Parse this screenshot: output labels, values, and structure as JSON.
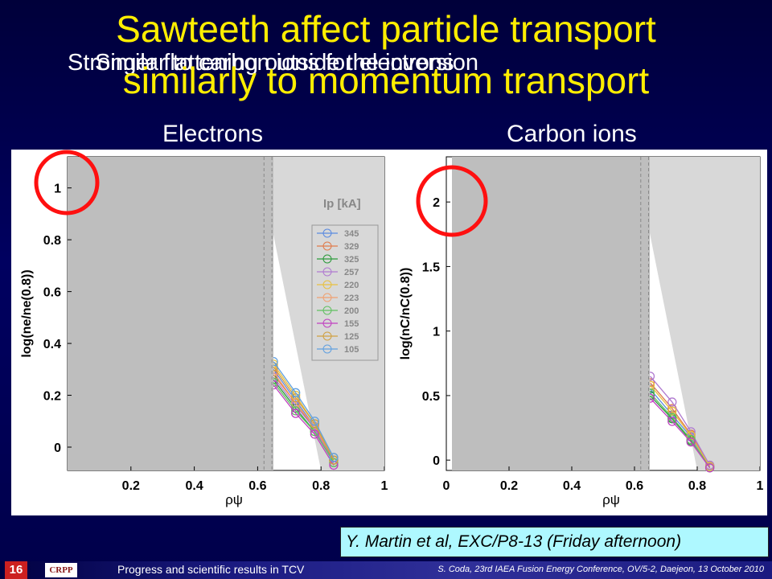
{
  "slide": {
    "title_line1": "Sawteeth affect particle transport",
    "title_line2": "similarly to momentum transport",
    "overlap_a": "Stronger flattening outside the inversion",
    "overlap_b": "Similar to carbon ions for electrons",
    "colors": {
      "title": "#ffee00",
      "background": "#000050",
      "circle": "#ff1010",
      "citation_bg": "#aef8ff"
    }
  },
  "panels": {
    "left_heading": "Electrons",
    "right_heading": "Carbon ions"
  },
  "chart_data": [
    {
      "type": "line",
      "title": "Electrons",
      "xlabel": "ρψ",
      "ylabel": "log(ne/ne(0.8))",
      "xlim": [
        0,
        1
      ],
      "ylim": [
        -0.09,
        1.12
      ],
      "xticks": [
        "0.2",
        "0.4",
        "0.6",
        "0.8",
        "1"
      ],
      "yticks": [
        "0",
        "0.2",
        "0.4",
        "0.6",
        "0.8",
        "1"
      ],
      "legend_title": "Ip [kA]",
      "legend_position": "top-right",
      "series": [
        {
          "name": "345",
          "color": "#5a8ae0",
          "x": [
            0.65,
            0.72,
            0.78,
            0.84
          ],
          "y": [
            0.3,
            0.18,
            0.08,
            -0.04
          ]
        },
        {
          "name": "329",
          "color": "#e07a4a",
          "x": [
            0.65,
            0.72,
            0.78,
            0.84
          ],
          "y": [
            0.28,
            0.17,
            0.07,
            -0.05
          ]
        },
        {
          "name": "325",
          "color": "#2a9a3a",
          "x": [
            0.65,
            0.72,
            0.78,
            0.84
          ],
          "y": [
            0.26,
            0.15,
            0.06,
            -0.05
          ]
        },
        {
          "name": "257",
          "color": "#b07ad0",
          "x": [
            0.65,
            0.72,
            0.78,
            0.84
          ],
          "y": [
            0.27,
            0.16,
            0.07,
            -0.06
          ]
        },
        {
          "name": "220",
          "color": "#e8c040",
          "x": [
            0.65,
            0.72,
            0.78,
            0.84
          ],
          "y": [
            0.32,
            0.2,
            0.09,
            -0.04
          ]
        },
        {
          "name": "223",
          "color": "#f0a070",
          "x": [
            0.65,
            0.72,
            0.78,
            0.84
          ],
          "y": [
            0.29,
            0.17,
            0.08,
            -0.05
          ]
        },
        {
          "name": "200",
          "color": "#60c060",
          "x": [
            0.65,
            0.72,
            0.78,
            0.84
          ],
          "y": [
            0.25,
            0.14,
            0.06,
            -0.06
          ]
        },
        {
          "name": "155",
          "color": "#c040c0",
          "x": [
            0.65,
            0.72,
            0.78,
            0.84
          ],
          "y": [
            0.24,
            0.13,
            0.05,
            -0.07
          ]
        },
        {
          "name": "125",
          "color": "#d0a040",
          "x": [
            0.65,
            0.72,
            0.78,
            0.84
          ],
          "y": [
            0.31,
            0.19,
            0.09,
            -0.05
          ]
        },
        {
          "name": "105",
          "color": "#60a0e0",
          "x": [
            0.65,
            0.72,
            0.78,
            0.84
          ],
          "y": [
            0.33,
            0.21,
            0.1,
            -0.04
          ]
        }
      ]
    },
    {
      "type": "line",
      "title": "Carbon ions",
      "xlabel": "ρψ",
      "ylabel": "log(nC/nC(0.8))",
      "xlim": [
        0,
        1
      ],
      "ylim": [
        -0.08,
        2.35
      ],
      "xticks": [
        "0",
        "0.2",
        "0.4",
        "0.6",
        "0.8",
        "1"
      ],
      "yticks": [
        "0",
        "0.5",
        "1",
        "1.5",
        "2"
      ],
      "series": [
        {
          "name": "345",
          "color": "#5a8ae0",
          "x": [
            0.65,
            0.72,
            0.78,
            0.84
          ],
          "y": [
            0.55,
            0.35,
            0.18,
            -0.05
          ]
        },
        {
          "name": "329",
          "color": "#e07a4a",
          "x": [
            0.65,
            0.72,
            0.78,
            0.84
          ],
          "y": [
            0.6,
            0.4,
            0.2,
            -0.04
          ]
        },
        {
          "name": "325",
          "color": "#2a9a3a",
          "x": [
            0.65,
            0.72,
            0.78,
            0.84
          ],
          "y": [
            0.5,
            0.32,
            0.15,
            -0.05
          ]
        },
        {
          "name": "257",
          "color": "#b07ad0",
          "x": [
            0.65,
            0.72,
            0.78,
            0.84
          ],
          "y": [
            0.65,
            0.45,
            0.22,
            -0.04
          ]
        },
        {
          "name": "220",
          "color": "#e8c040",
          "x": [
            0.65,
            0.72,
            0.78,
            0.84
          ],
          "y": [
            0.58,
            0.38,
            0.19,
            -0.05
          ]
        },
        {
          "name": "200",
          "color": "#60c060",
          "x": [
            0.65,
            0.72,
            0.78,
            0.84
          ],
          "y": [
            0.52,
            0.33,
            0.16,
            -0.06
          ]
        },
        {
          "name": "155",
          "color": "#c040c0",
          "x": [
            0.65,
            0.72,
            0.78,
            0.84
          ],
          "y": [
            0.48,
            0.3,
            0.14,
            -0.06
          ]
        }
      ]
    }
  ],
  "citation": "Y. Martin et al, EXC/P8-13 (Friday afternoon)",
  "footer": {
    "page_number": "16",
    "logo_text": "CRPP",
    "left_text": "Progress and scientific results in TCV",
    "right_text": "S. Coda, 23rd IAEA Fusion Energy Conference, OV/5-2, Daejeon, 13 October 2010"
  }
}
